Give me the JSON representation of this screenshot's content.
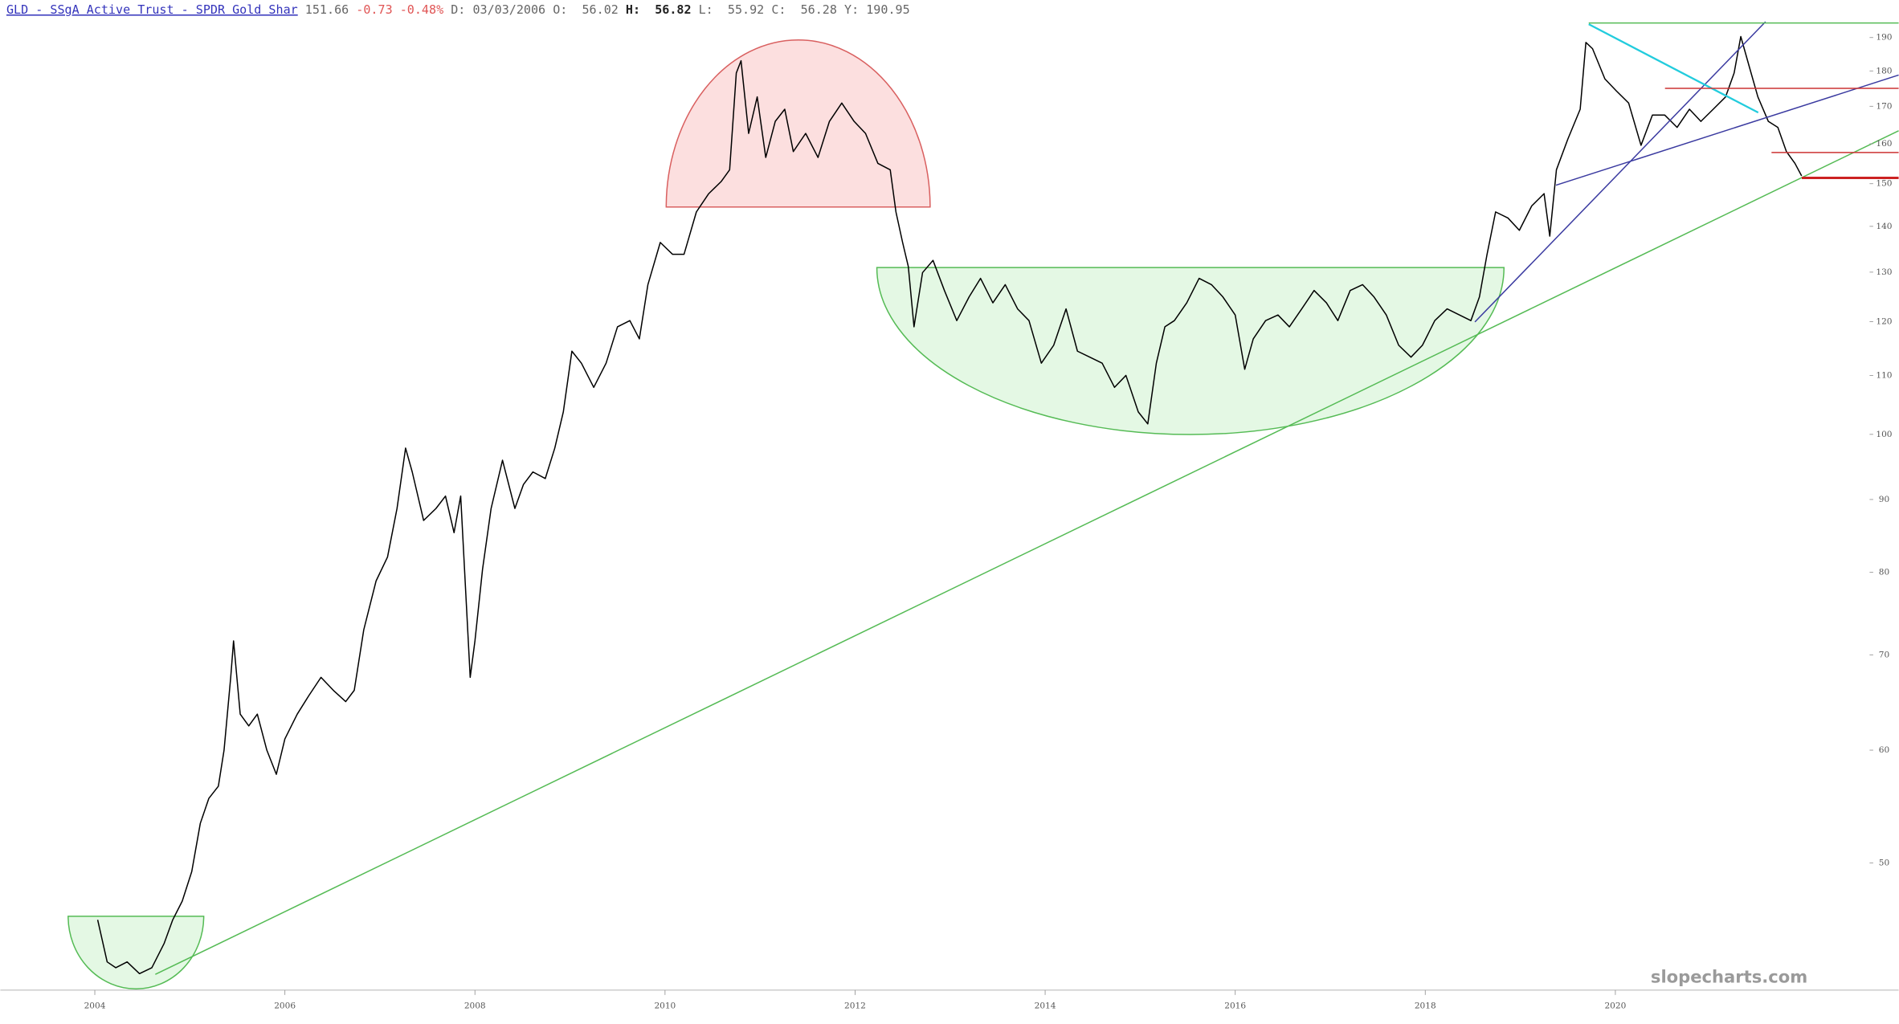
{
  "header": {
    "title": "GLD - SSgA Active Trust - SPDR Gold Shar",
    "last": "151.66",
    "change": "-0.73",
    "change_pct": "-0.48%",
    "date_label": "D:",
    "date": "03/03/2006",
    "open_label": "O:",
    "open": "56.02",
    "high_label": "H:",
    "high": "56.82",
    "low_label": "L:",
    "low": "55.92",
    "close_label": "C:",
    "close": "56.28",
    "y_label": "Y:",
    "y": "190.95"
  },
  "watermark": "slopecharts.com",
  "chart_data": {
    "type": "line",
    "color": "#000000",
    "yscale": "log",
    "grid": false,
    "xlim": [
      2003.006,
      2022.497
    ],
    "xticks": [
      2004,
      2006,
      2008,
      2010,
      2012,
      2014,
      2016,
      2018,
      2020
    ],
    "ylim": [
      40.7,
      194.9
    ],
    "yticks": [
      50,
      60,
      70,
      80,
      90,
      100,
      110,
      120,
      130,
      140,
      150,
      160,
      170,
      180,
      190
    ],
    "x": [
      2004.03,
      2004.13,
      2004.22,
      2004.34,
      2004.47,
      2004.6,
      2004.73,
      2004.82,
      2004.92,
      2005.02,
      2005.11,
      2005.2,
      2005.3,
      2005.36,
      2005.43,
      2005.46,
      2005.53,
      2005.62,
      2005.71,
      2005.81,
      2005.91,
      2006.0,
      2006.13,
      2006.25,
      2006.38,
      2006.51,
      2006.64,
      2006.73,
      2006.83,
      2006.96,
      2007.08,
      2007.18,
      2007.27,
      2007.34,
      2007.46,
      2007.59,
      2007.69,
      2007.78,
      2007.85,
      2007.91,
      2007.95,
      2008.0,
      2008.08,
      2008.17,
      2008.29,
      2008.42,
      2008.51,
      2008.61,
      2008.74,
      2008.84,
      2008.93,
      2009.02,
      2009.12,
      2009.25,
      2009.38,
      2009.5,
      2009.63,
      2009.73,
      2009.82,
      2009.95,
      2010.08,
      2010.2,
      2010.33,
      2010.46,
      2010.59,
      2010.68,
      2010.75,
      2010.8,
      2010.88,
      2010.97,
      2011.06,
      2011.16,
      2011.26,
      2011.35,
      2011.48,
      2011.61,
      2011.73,
      2011.86,
      2011.99,
      2012.11,
      2012.24,
      2012.37,
      2012.43,
      2012.5,
      2012.56,
      2012.62,
      2012.71,
      2012.82,
      2012.94,
      2013.07,
      2013.2,
      2013.32,
      2013.45,
      2013.58,
      2013.71,
      2013.83,
      2013.96,
      2014.09,
      2014.22,
      2014.34,
      2014.47,
      2014.6,
      2014.73,
      2014.85,
      2014.98,
      2015.08,
      2015.17,
      2015.26,
      2015.36,
      2015.49,
      2015.62,
      2015.75,
      2015.87,
      2016.0,
      2016.1,
      2016.19,
      2016.32,
      2016.45,
      2016.57,
      2016.7,
      2016.83,
      2016.96,
      2017.08,
      2017.21,
      2017.34,
      2017.46,
      2017.59,
      2017.72,
      2017.85,
      2017.97,
      2018.1,
      2018.23,
      2018.36,
      2018.48,
      2018.57,
      2018.65,
      2018.74,
      2018.87,
      2018.99,
      2019.12,
      2019.25,
      2019.31,
      2019.38,
      2019.5,
      2019.63,
      2019.69,
      2019.76,
      2019.89,
      2020.01,
      2020.14,
      2020.27,
      2020.39,
      2020.52,
      2020.65,
      2020.78,
      2020.9,
      2021.03,
      2021.16,
      2021.25,
      2021.32,
      2021.41,
      2021.5,
      2021.61,
      2021.71,
      2021.8,
      2021.89,
      2021.96
    ],
    "values": [
      45.6,
      42.6,
      42.2,
      42.6,
      41.8,
      42.2,
      43.9,
      45.6,
      47.0,
      49.3,
      53.3,
      55.5,
      56.6,
      60.0,
      67.5,
      71.6,
      63.6,
      62.4,
      63.6,
      60.0,
      57.7,
      61.1,
      63.6,
      65.5,
      67.5,
      66.1,
      64.9,
      66.1,
      72.9,
      78.9,
      82.0,
      88.7,
      97.8,
      94.1,
      87.0,
      88.7,
      90.5,
      85.3,
      90.5,
      75.9,
      67.5,
      71.6,
      80.4,
      88.7,
      95.9,
      88.7,
      92.2,
      94.1,
      93.1,
      97.8,
      103.7,
      114.4,
      112.2,
      107.9,
      112.2,
      119.0,
      120.2,
      116.7,
      127.4,
      136.4,
      133.8,
      133.8,
      143.3,
      147.6,
      150.5,
      153.4,
      179.4,
      183.0,
      162.7,
      172.6,
      156.5,
      165.9,
      169.2,
      158.0,
      162.7,
      156.5,
      165.9,
      170.9,
      165.9,
      162.7,
      155.0,
      153.4,
      143.3,
      136.4,
      131.2,
      119.0,
      129.9,
      132.5,
      126.2,
      120.2,
      124.9,
      128.7,
      123.7,
      127.4,
      122.5,
      120.2,
      112.2,
      115.5,
      122.5,
      114.4,
      113.3,
      112.2,
      107.9,
      110.0,
      103.7,
      101.7,
      112.2,
      119.0,
      120.2,
      123.7,
      128.7,
      127.4,
      124.9,
      121.3,
      111.1,
      116.7,
      120.2,
      121.3,
      119.0,
      122.5,
      126.2,
      123.7,
      120.2,
      126.2,
      127.4,
      124.9,
      121.3,
      115.5,
      113.3,
      115.5,
      120.2,
      122.5,
      121.3,
      120.2,
      124.9,
      133.8,
      143.3,
      141.9,
      139.1,
      144.7,
      147.6,
      137.8,
      153.4,
      161.2,
      169.2,
      188.5,
      186.6,
      177.7,
      174.3,
      170.9,
      159.6,
      167.6,
      167.6,
      164.3,
      169.2,
      165.9,
      169.2,
      172.6,
      179.4,
      190.3,
      181.2,
      172.6,
      165.9,
      164.3,
      158.0,
      155.0,
      151.9
    ]
  }
}
